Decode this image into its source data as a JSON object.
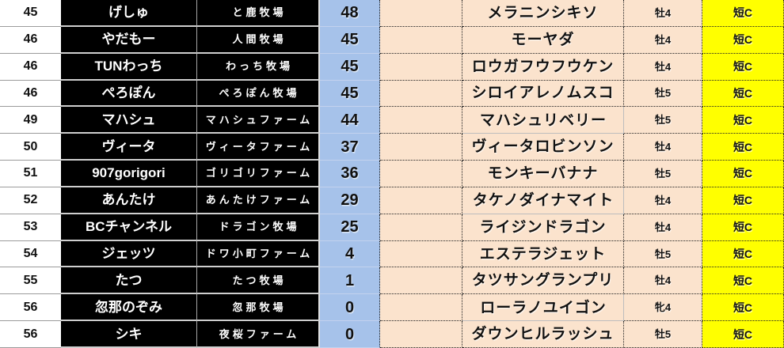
{
  "colors": {
    "points_bg": "#a6c2ea",
    "row_bg": "#fbe3cd",
    "grade_bg": "#ffff00",
    "name_bg": "#000000"
  },
  "table": {
    "rows": [
      {
        "rank": "45",
        "player": "げしゅ",
        "farm": "と鹿牧場",
        "points": "48",
        "horse": "メラニンシキソ",
        "sex_age": "牡4",
        "grade": "短C",
        "highlighted": false
      },
      {
        "rank": "46",
        "player": "やだもー",
        "farm": "人間牧場",
        "points": "45",
        "horse": "モーヤダ",
        "sex_age": "牡4",
        "grade": "短C",
        "highlighted": false
      },
      {
        "rank": "46",
        "player": "TUNわっち",
        "farm": "わっち牧場",
        "points": "45",
        "horse": "ロウガフウフウケン",
        "sex_age": "牡4",
        "grade": "短C",
        "highlighted": false
      },
      {
        "rank": "46",
        "player": "ぺろぽん",
        "farm": "ぺろぽん牧場",
        "points": "45",
        "horse": "シロイアレノムスコ",
        "sex_age": "牡5",
        "grade": "短C",
        "highlighted": false
      },
      {
        "rank": "49",
        "player": "マハシュ",
        "farm": "マハシュファーム",
        "points": "44",
        "horse": "マハシュリベリー",
        "sex_age": "牡5",
        "grade": "短C",
        "highlighted": true
      },
      {
        "rank": "50",
        "player": "ヴィータ",
        "farm": "ヴィータファーム",
        "points": "37",
        "horse": "ヴィータロビンソン",
        "sex_age": "牡4",
        "grade": "短C",
        "highlighted": false
      },
      {
        "rank": "51",
        "player": "907gorigori",
        "farm": "ゴリゴリファーム",
        "points": "36",
        "horse": "モンキーバナナ",
        "sex_age": "牡5",
        "grade": "短C",
        "highlighted": false
      },
      {
        "rank": "52",
        "player": "あんたけ",
        "farm": "あんたけファーム",
        "points": "29",
        "horse": "タケノダイナマイト",
        "sex_age": "牡4",
        "grade": "短C",
        "highlighted": true
      },
      {
        "rank": "53",
        "player": "BCチャンネル",
        "farm": "ドラゴン牧場",
        "points": "25",
        "horse": "ライジンドラゴン",
        "sex_age": "牡4",
        "grade": "短C",
        "highlighted": false
      },
      {
        "rank": "54",
        "player": "ジェッツ",
        "farm": "ドワ小町ファーム",
        "points": "4",
        "horse": "エステラジェット",
        "sex_age": "牡5",
        "grade": "短C",
        "highlighted": false
      },
      {
        "rank": "55",
        "player": "たつ",
        "farm": "たつ牧場",
        "points": "1",
        "horse": "タツサングランプリ",
        "sex_age": "牡4",
        "grade": "短C",
        "highlighted": false
      },
      {
        "rank": "56",
        "player": "忽那のぞみ",
        "farm": "忽那牧場",
        "points": "0",
        "horse": "ローラノユイゴン",
        "sex_age": "牝4",
        "grade": "短C",
        "highlighted": true
      },
      {
        "rank": "56",
        "player": "シキ",
        "farm": "夜桜ファーム",
        "points": "0",
        "horse": "ダウンヒルラッシュ",
        "sex_age": "牡5",
        "grade": "短C",
        "highlighted": false
      }
    ]
  }
}
